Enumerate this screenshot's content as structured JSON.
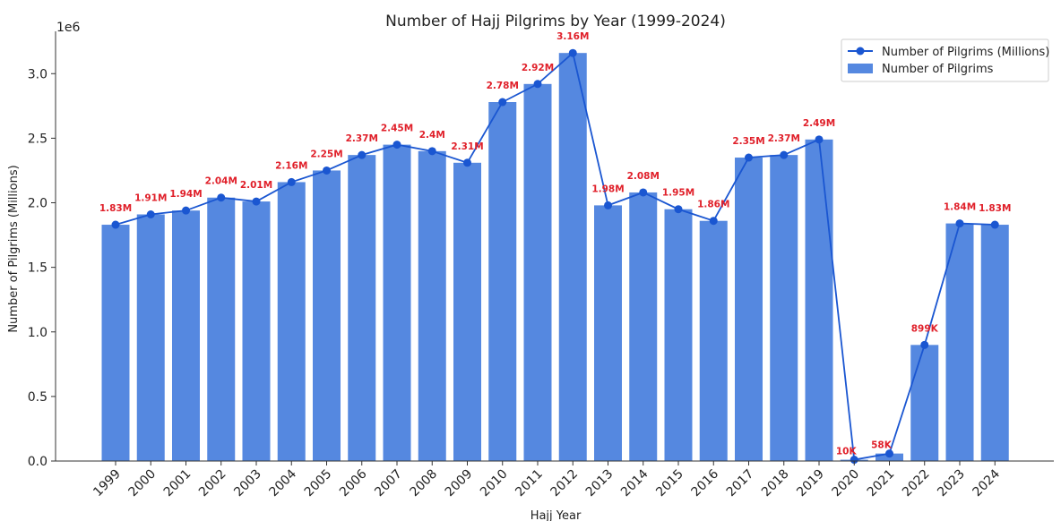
{
  "chart_data": {
    "type": "bar",
    "title": "Number of Hajj Pilgrims by Year (1999-2024)",
    "xlabel": "Hajj Year",
    "ylabel": "Number of Pilgrims (Millions)",
    "y_offset_label": "1e6",
    "ylim": [
      0,
      3.3
    ],
    "yticks": [
      "0.0",
      "0.5",
      "1.0",
      "1.5",
      "2.0",
      "2.5",
      "3.0"
    ],
    "grid": false,
    "legend_position": "top-right",
    "categories": [
      "1999",
      "2000",
      "2001",
      "2002",
      "2003",
      "2004",
      "2005",
      "2006",
      "2007",
      "2008",
      "2009",
      "2010",
      "2011",
      "2012",
      "2013",
      "2014",
      "2015",
      "2016",
      "2017",
      "2018",
      "2019",
      "2020",
      "2021",
      "2022",
      "2023",
      "2024"
    ],
    "series": [
      {
        "name": "Number of Pilgrims (Millions)",
        "type": "line",
        "color": "#1a56d1",
        "values": [
          1.83,
          1.91,
          1.94,
          2.04,
          2.01,
          2.16,
          2.25,
          2.37,
          2.45,
          2.4,
          2.31,
          2.78,
          2.92,
          3.16,
          1.98,
          2.08,
          1.95,
          1.86,
          2.35,
          2.37,
          2.49,
          0.01,
          0.058,
          0.899,
          1.84,
          1.83
        ]
      },
      {
        "name": "Number of Pilgrims",
        "type": "bar",
        "color": "#5588e0",
        "values": [
          1.83,
          1.91,
          1.94,
          2.04,
          2.01,
          2.16,
          2.25,
          2.37,
          2.45,
          2.4,
          2.31,
          2.78,
          2.92,
          3.16,
          1.98,
          2.08,
          1.95,
          1.86,
          2.35,
          2.37,
          2.49,
          0.01,
          0.058,
          0.899,
          1.84,
          1.83
        ]
      }
    ],
    "data_labels": [
      "1.83M",
      "1.91M",
      "1.94M",
      "2.04M",
      "2.01M",
      "2.16M",
      "2.25M",
      "2.37M",
      "2.45M",
      "2.4M",
      "2.31M",
      "2.78M",
      "2.92M",
      "3.16M",
      "1.98M",
      "2.08M",
      "1.95M",
      "1.86M",
      "2.35M",
      "2.37M",
      "2.49M",
      "10K",
      "58K",
      "899K",
      "1.84M",
      "1.83M"
    ],
    "data_label_color": "#e0202a"
  }
}
